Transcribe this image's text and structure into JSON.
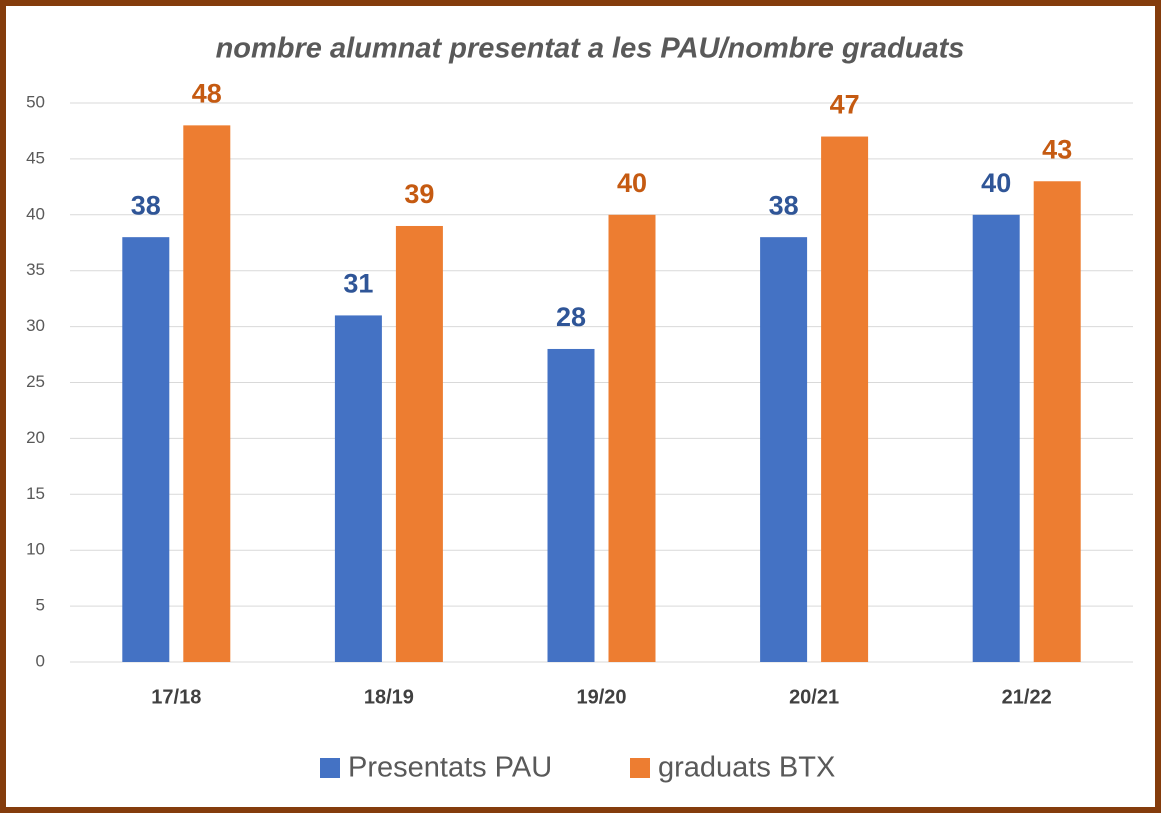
{
  "chart_data": {
    "type": "bar",
    "title": "nombre alumnat presentat a les PAU/nombre graduats",
    "categories": [
      "17/18",
      "18/19",
      "19/20",
      "20/21",
      "21/22"
    ],
    "series": [
      {
        "name": "Presentats PAU",
        "color": "#4472c4",
        "values": [
          38,
          31,
          28,
          38,
          40
        ]
      },
      {
        "name": "graduats BTX",
        "color": "#ed7d31",
        "values": [
          48,
          39,
          40,
          47,
          43
        ]
      }
    ],
    "ylim": [
      0,
      50
    ],
    "yticks": [
      0,
      5,
      10,
      15,
      20,
      25,
      30,
      35,
      40,
      45,
      50
    ],
    "grid": true,
    "legend": "bottom"
  }
}
